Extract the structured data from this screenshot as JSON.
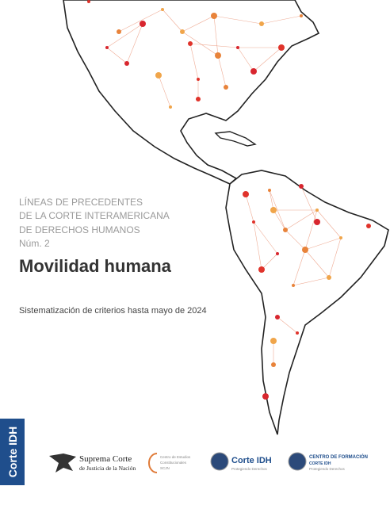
{
  "heading": {
    "lines": [
      "LÍNEAS DE PRECEDENTES",
      "DE LA CORTE INTERAMERICANA",
      "DE DERECHOS HUMANOS",
      "Núm. 2"
    ],
    "title": "Movilidad humana",
    "subtitle": "Sistematización de criterios hasta mayo de 2024"
  },
  "sidebar": {
    "label": "Corte IDH"
  },
  "logos": [
    {
      "lines": [
        "Suprema Corte",
        "de Justicia de la Nación"
      ]
    },
    {
      "lines": [
        "Centro de Estudios",
        "Constitucionales",
        "SCJN"
      ]
    },
    {
      "lines": [
        "Corte IDH",
        "Protegiendo Derechos"
      ]
    },
    {
      "lines": [
        "CENTRO DE FORMACIÓN",
        "CORTE IDH",
        "Protegiendo Derechos"
      ]
    }
  ]
}
